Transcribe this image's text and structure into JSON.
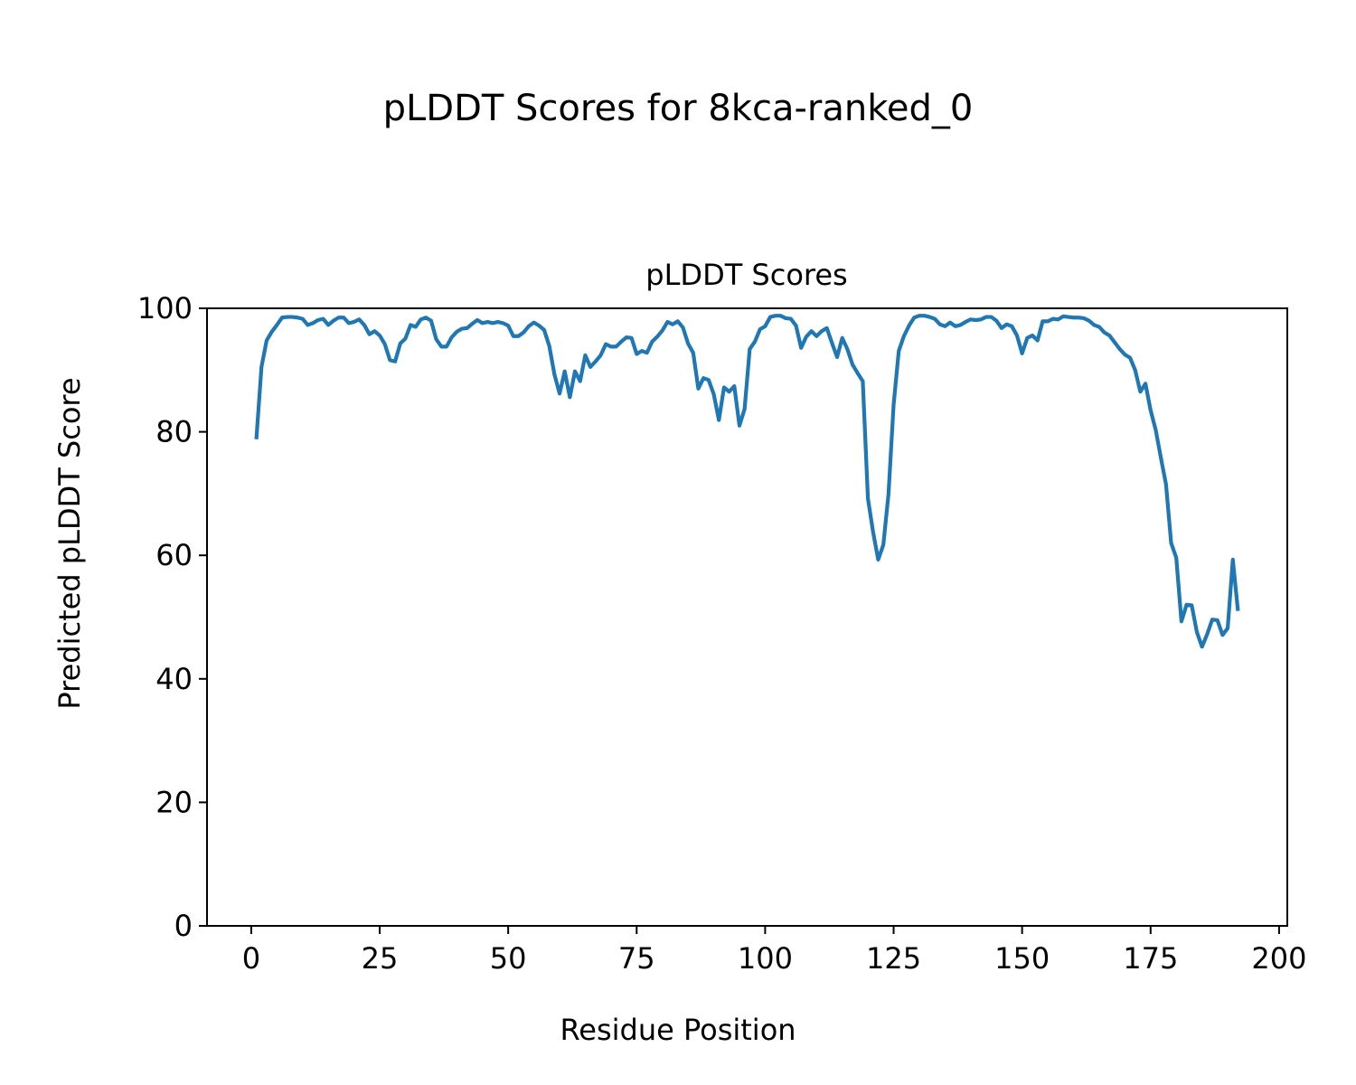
{
  "figure": {
    "suptitle": "pLDDT Scores for 8kca-ranked_0",
    "line_color": "#1f77b4"
  },
  "chart_data": {
    "type": "line",
    "title": "pLDDT Scores",
    "xlabel": "Residue Position",
    "ylabel": "Predicted pLDDT Score",
    "xlim": [
      -8.6,
      201.6
    ],
    "ylim": [
      0,
      100
    ],
    "xticks": [
      0,
      25,
      50,
      75,
      100,
      125,
      150,
      175,
      200
    ],
    "yticks": [
      0,
      20,
      40,
      60,
      80,
      100
    ],
    "grid": false,
    "legend": "none",
    "series": [
      {
        "x": [
          1,
          2,
          3,
          4,
          5,
          6,
          7,
          8,
          9,
          10,
          11,
          12,
          13,
          14,
          15,
          16,
          17,
          18,
          19,
          20,
          21,
          22,
          23,
          24,
          25,
          26,
          27,
          28,
          29,
          30,
          31,
          32,
          33,
          34,
          35,
          36,
          37,
          38,
          39,
          40,
          41,
          42,
          43,
          44,
          45,
          46,
          47,
          48,
          49,
          50,
          51,
          52,
          53,
          54,
          55,
          56,
          57,
          58,
          59,
          60,
          61,
          62,
          63,
          64,
          65,
          66,
          67,
          68,
          69,
          70,
          71,
          72,
          73,
          74,
          75,
          76,
          77,
          78,
          79,
          80,
          81,
          82,
          83,
          84,
          85,
          86,
          87,
          88,
          89,
          90,
          91,
          92,
          93,
          94,
          95,
          96,
          97,
          98,
          99,
          100,
          101,
          102,
          103,
          104,
          105,
          106,
          107,
          108,
          109,
          110,
          111,
          112,
          113,
          114,
          115,
          116,
          117,
          118,
          119,
          120,
          121,
          122,
          123,
          124,
          125,
          126,
          127,
          128,
          129,
          130,
          131,
          132,
          133,
          134,
          135,
          136,
          137,
          138,
          139,
          140,
          141,
          142,
          143,
          144,
          145,
          146,
          147,
          148,
          149,
          150,
          151,
          152,
          153,
          154,
          155,
          156,
          157,
          158,
          159,
          160,
          161,
          162,
          163,
          164,
          165,
          166,
          167,
          168,
          169,
          170,
          171,
          172,
          173,
          174,
          175,
          176,
          177,
          178,
          179,
          180,
          181,
          182,
          183,
          184,
          185,
          186,
          187,
          188,
          189,
          190,
          191,
          192
        ],
        "y": [
          78.8,
          90.5,
          94.8,
          96.2,
          97.3,
          98.5,
          98.6,
          98.6,
          98.5,
          98.3,
          97.3,
          97.6,
          98.1,
          98.3,
          97.3,
          98.0,
          98.5,
          98.5,
          97.6,
          97.8,
          98.2,
          97.3,
          95.8,
          96.3,
          95.6,
          94.2,
          91.6,
          91.4,
          94.3,
          95.1,
          97.3,
          97.0,
          98.2,
          98.5,
          98.0,
          95.0,
          93.8,
          93.8,
          95.3,
          96.2,
          96.7,
          96.8,
          97.5,
          98.1,
          97.6,
          97.8,
          97.6,
          97.8,
          97.6,
          97.2,
          95.5,
          95.5,
          96.1,
          97.1,
          97.7,
          97.2,
          96.5,
          93.9,
          89.3,
          86.2,
          89.8,
          85.6,
          89.8,
          88.2,
          92.4,
          90.5,
          91.4,
          92.4,
          94.2,
          93.8,
          93.8,
          94.6,
          95.3,
          95.2,
          92.6,
          93.1,
          92.8,
          94.6,
          95.4,
          96.4,
          97.8,
          97.4,
          97.9,
          96.9,
          94.3,
          92.8,
          87.0,
          88.7,
          88.4,
          86.1,
          81.9,
          87.2,
          86.5,
          87.4,
          81.0,
          83.7,
          93.4,
          94.6,
          96.6,
          97.1,
          98.6,
          98.8,
          98.8,
          98.4,
          98.3,
          97.2,
          93.6,
          95.4,
          96.3,
          95.5,
          96.3,
          96.8,
          94.4,
          92.1,
          95.2,
          93.4,
          90.9,
          89.5,
          88.2,
          69.2,
          63.8,
          59.3,
          61.7,
          69.9,
          84.4,
          93.1,
          95.5,
          97.2,
          98.5,
          98.8,
          98.8,
          98.6,
          98.3,
          97.4,
          97.1,
          97.7,
          97.1,
          97.3,
          97.8,
          98.2,
          98.1,
          98.2,
          98.6,
          98.6,
          98.0,
          96.8,
          97.4,
          97.1,
          95.6,
          92.7,
          95.2,
          95.6,
          94.8,
          97.9,
          97.9,
          98.3,
          98.2,
          98.7,
          98.6,
          98.5,
          98.5,
          98.4,
          98.0,
          97.3,
          97.0,
          96.1,
          95.6,
          94.5,
          93.4,
          92.5,
          92.0,
          90.0,
          86.5,
          87.8,
          83.5,
          80.3,
          75.8,
          71.5,
          62.0,
          59.6,
          49.3,
          52.0,
          51.9,
          47.6,
          45.2,
          47.2,
          49.6,
          49.5,
          47.1,
          48.2,
          59.3,
          51.0
        ]
      }
    ]
  }
}
